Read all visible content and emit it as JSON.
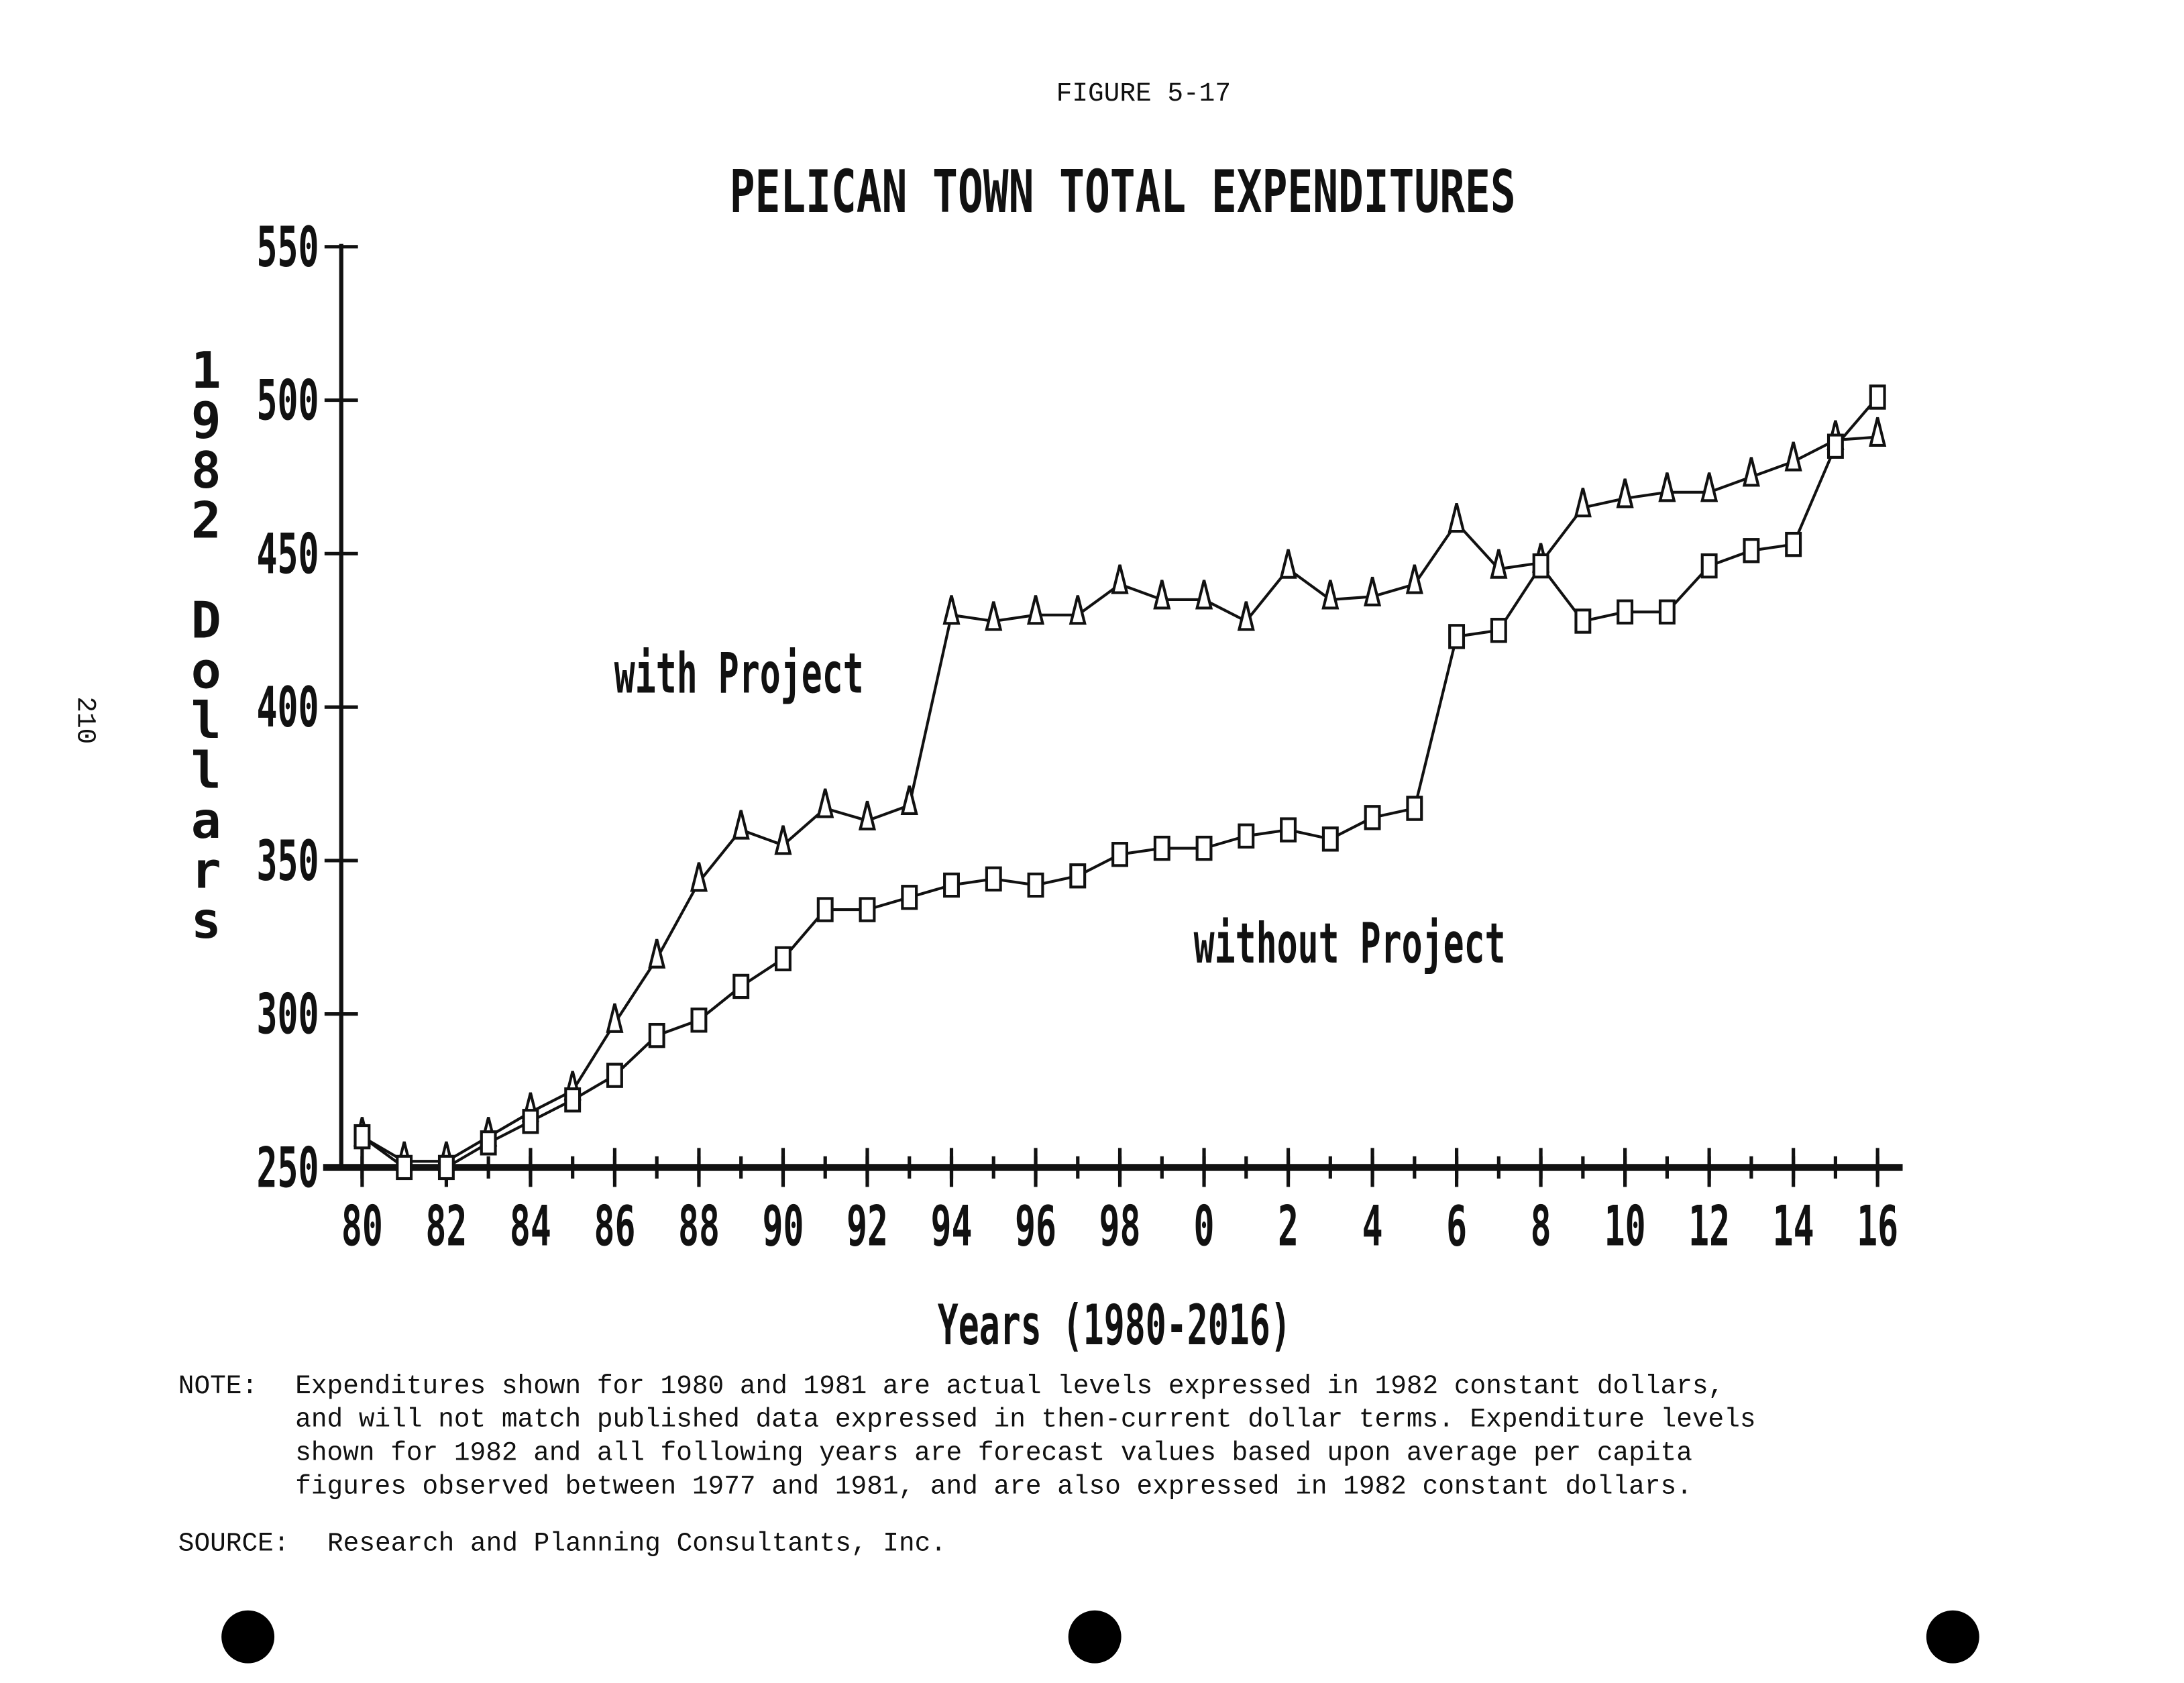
{
  "figure_label": "FIGURE 5-17",
  "page_number": "210",
  "chart_data": {
    "type": "line",
    "title": "PELICAN TOWN TOTAL EXPENDITURES",
    "y_label": "1982 Dollars",
    "x_label": "Years (1980-2016)",
    "x": [
      1980,
      1981,
      1982,
      1983,
      1984,
      1985,
      1986,
      1987,
      1988,
      1989,
      1990,
      1991,
      1992,
      1993,
      1994,
      1995,
      1996,
      1997,
      1998,
      1999,
      2000,
      2001,
      2002,
      2003,
      2004,
      2005,
      2006,
      2007,
      2008,
      2009,
      2010,
      2011,
      2012,
      2013,
      2014,
      2015,
      2016
    ],
    "xlim": [
      1980,
      2016
    ],
    "xticks": [
      {
        "value": 1980,
        "label": "80"
      },
      {
        "value": 1982,
        "label": "82"
      },
      {
        "value": 1984,
        "label": "84"
      },
      {
        "value": 1986,
        "label": "86"
      },
      {
        "value": 1988,
        "label": "88"
      },
      {
        "value": 1990,
        "label": "90"
      },
      {
        "value": 1992,
        "label": "92"
      },
      {
        "value": 1994,
        "label": "94"
      },
      {
        "value": 1996,
        "label": "96"
      },
      {
        "value": 1998,
        "label": "98"
      },
      {
        "value": 2000,
        "label": "0"
      },
      {
        "value": 2002,
        "label": "2"
      },
      {
        "value": 2004,
        "label": "4"
      },
      {
        "value": 2006,
        "label": "6"
      },
      {
        "value": 2008,
        "label": "8"
      },
      {
        "value": 2010,
        "label": "10"
      },
      {
        "value": 2012,
        "label": "12"
      },
      {
        "value": 2014,
        "label": "14"
      },
      {
        "value": 2016,
        "label": "16"
      }
    ],
    "ylim": [
      250,
      550
    ],
    "yticks": [
      250,
      300,
      350,
      400,
      450,
      500,
      550
    ],
    "series": [
      {
        "name": "with Project",
        "color": "#111111",
        "marker": "triangle",
        "values": [
          260,
          252,
          252,
          260,
          268,
          275,
          297,
          318,
          343,
          360,
          355,
          367,
          363,
          368,
          430,
          428,
          430,
          430,
          440,
          435,
          435,
          428,
          445,
          435,
          436,
          440,
          460,
          445,
          447,
          465,
          468,
          470,
          470,
          475,
          480,
          487,
          488
        ]
      },
      {
        "name": "without Project",
        "color": "#111111",
        "marker": "square",
        "values": [
          260,
          250,
          250,
          258,
          265,
          272,
          280,
          293,
          298,
          309,
          318,
          334,
          334,
          338,
          342,
          344,
          342,
          345,
          352,
          354,
          354,
          358,
          360,
          357,
          364,
          367,
          423,
          425,
          446,
          428,
          431,
          431,
          446,
          451,
          453,
          485,
          501
        ]
      }
    ]
  },
  "note": {
    "label": "NOTE:",
    "lines": [
      "Expenditures shown for 1980 and 1981 are actual levels expressed in 1982 constant dollars,",
      "and will not match published data expressed in then-current dollar terms.  Expenditure levels",
      "shown for 1982 and all following years are forecast values based upon average per capita",
      "figures observed between 1977 and 1981, and are also expressed in 1982 constant dollars."
    ]
  },
  "source": {
    "label": "SOURCE:",
    "text": "Research and Planning Consultants, Inc."
  }
}
